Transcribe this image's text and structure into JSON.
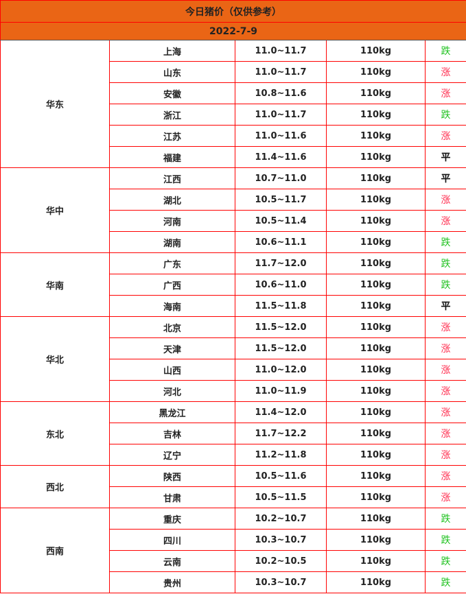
{
  "title": "今日猪价（仅供参考）",
  "date": "2022-7-9",
  "colors": {
    "header_bg": "#ea6515",
    "border": "#ff0000",
    "up": "#ff2b4d",
    "down": "#1fc21f",
    "flat": "#111111"
  },
  "regions": [
    {
      "name": "华东",
      "rows": [
        {
          "province": "上海",
          "price": "11.0~11.7",
          "weight": "110kg",
          "trend": "跌"
        },
        {
          "province": "山东",
          "price": "11.0~11.7",
          "weight": "110kg",
          "trend": "涨"
        },
        {
          "province": "安徽",
          "price": "10.8~11.6",
          "weight": "110kg",
          "trend": "涨"
        },
        {
          "province": "浙江",
          "price": "11.0~11.7",
          "weight": "110kg",
          "trend": "跌"
        },
        {
          "province": "江苏",
          "price": "11.0~11.6",
          "weight": "110kg",
          "trend": "涨"
        },
        {
          "province": "福建",
          "price": "11.4~11.6",
          "weight": "110kg",
          "trend": "平"
        }
      ]
    },
    {
      "name": "华中",
      "rows": [
        {
          "province": "江西",
          "price": "10.7~11.0",
          "weight": "110kg",
          "trend": "平"
        },
        {
          "province": "湖北",
          "price": "10.5~11.7",
          "weight": "110kg",
          "trend": "涨"
        },
        {
          "province": "河南",
          "price": "10.5~11.4",
          "weight": "110kg",
          "trend": "涨"
        },
        {
          "province": "湖南",
          "price": "10.6~11.1",
          "weight": "110kg",
          "trend": "跌"
        }
      ]
    },
    {
      "name": "华南",
      "rows": [
        {
          "province": "广东",
          "price": "11.7~12.0",
          "weight": "110kg",
          "trend": "跌"
        },
        {
          "province": "广西",
          "price": "10.6~11.0",
          "weight": "110kg",
          "trend": "跌"
        },
        {
          "province": "海南",
          "price": "11.5~11.8",
          "weight": "110kg",
          "trend": "平"
        }
      ]
    },
    {
      "name": "华北",
      "rows": [
        {
          "province": "北京",
          "price": "11.5~12.0",
          "weight": "110kg",
          "trend": "涨"
        },
        {
          "province": "天津",
          "price": "11.5~12.0",
          "weight": "110kg",
          "trend": "涨"
        },
        {
          "province": "山西",
          "price": "11.0~12.0",
          "weight": "110kg",
          "trend": "涨"
        },
        {
          "province": "河北",
          "price": "11.0~11.9",
          "weight": "110kg",
          "trend": "涨"
        }
      ]
    },
    {
      "name": "东北",
      "rows": [
        {
          "province": "黑龙江",
          "price": "11.4~12.0",
          "weight": "110kg",
          "trend": "涨"
        },
        {
          "province": "吉林",
          "price": "11.7~12.2",
          "weight": "110kg",
          "trend": "涨"
        },
        {
          "province": "辽宁",
          "price": "11.2~11.8",
          "weight": "110kg",
          "trend": "涨"
        }
      ]
    },
    {
      "name": "西北",
      "rows": [
        {
          "province": "陕西",
          "price": "10.5~11.6",
          "weight": "110kg",
          "trend": "涨"
        },
        {
          "province": "甘肃",
          "price": "10.5~11.5",
          "weight": "110kg",
          "trend": "涨"
        }
      ]
    },
    {
      "name": "西南",
      "rows": [
        {
          "province": "重庆",
          "price": "10.2~10.7",
          "weight": "110kg",
          "trend": "跌"
        },
        {
          "province": "四川",
          "price": "10.3~10.7",
          "weight": "110kg",
          "trend": "跌"
        },
        {
          "province": "云南",
          "price": "10.2~10.5",
          "weight": "110kg",
          "trend": "跌"
        },
        {
          "province": "贵州",
          "price": "10.3~10.7",
          "weight": "110kg",
          "trend": "跌"
        }
      ]
    }
  ]
}
